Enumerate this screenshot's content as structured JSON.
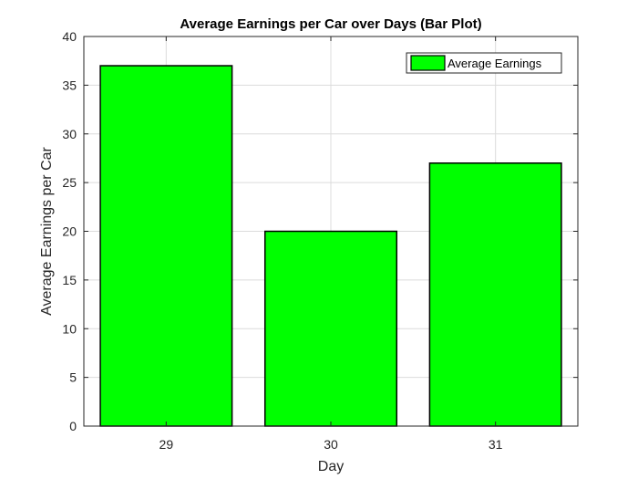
{
  "chart_data": {
    "type": "bar",
    "title": "Average Earnings per Car over Days (Bar Plot)",
    "xlabel": "Day",
    "ylabel": "Average Earnings per Car",
    "categories": [
      "29",
      "30",
      "31"
    ],
    "series": [
      {
        "name": "Average Earnings",
        "values": [
          37,
          20,
          27
        ]
      }
    ],
    "ylim": [
      0,
      40
    ],
    "yticks": [
      0,
      5,
      10,
      15,
      20,
      25,
      30,
      35,
      40
    ],
    "grid": true,
    "legend_position": "top-right",
    "colors": {
      "bar_fill": "#00ff00",
      "bar_edge": "#000000",
      "grid": "#dcdcdc",
      "axis": "#262626"
    }
  }
}
